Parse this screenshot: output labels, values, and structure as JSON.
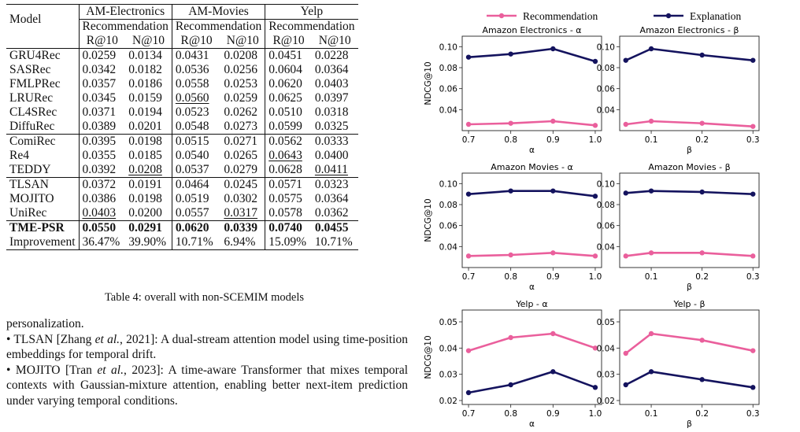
{
  "table": {
    "col_model": "Model",
    "datasets": [
      "AM-Electronics",
      "AM-Movies",
      "Yelp"
    ],
    "task": "Recommendation",
    "metrics": [
      "R@10",
      "N@10"
    ],
    "rows": [
      {
        "model": "GRU4Rec",
        "vals": [
          "0.0259",
          "0.0134",
          "0.0431",
          "0.0208",
          "0.0451",
          "0.0228"
        ],
        "underline": [],
        "group_start": false
      },
      {
        "model": "SASRec",
        "vals": [
          "0.0342",
          "0.0182",
          "0.0536",
          "0.0256",
          "0.0604",
          "0.0364"
        ],
        "underline": [],
        "group_start": false
      },
      {
        "model": "FMLPRec",
        "vals": [
          "0.0357",
          "0.0186",
          "0.0558",
          "0.0253",
          "0.0620",
          "0.0403"
        ],
        "underline": [],
        "group_start": false
      },
      {
        "model": "LRURec",
        "vals": [
          "0.0345",
          "0.0159",
          "0.0560",
          "0.0259",
          "0.0625",
          "0.0397"
        ],
        "underline": [
          2
        ],
        "group_start": false
      },
      {
        "model": "CL4SRec",
        "vals": [
          "0.0371",
          "0.0194",
          "0.0523",
          "0.0262",
          "0.0510",
          "0.0318"
        ],
        "underline": [],
        "group_start": false
      },
      {
        "model": "DiffuRec",
        "vals": [
          "0.0389",
          "0.0201",
          "0.0548",
          "0.0273",
          "0.0599",
          "0.0325"
        ],
        "underline": [],
        "group_start": false
      },
      {
        "model": "ComiRec",
        "vals": [
          "0.0395",
          "0.0198",
          "0.0515",
          "0.0271",
          "0.0562",
          "0.0333"
        ],
        "underline": [],
        "group_start": true
      },
      {
        "model": "Re4",
        "vals": [
          "0.0355",
          "0.0185",
          "0.0540",
          "0.0265",
          "0.0643",
          "0.0400"
        ],
        "underline": [
          4
        ],
        "group_start": false
      },
      {
        "model": "TEDDY",
        "vals": [
          "0.0392",
          "0.0208",
          "0.0537",
          "0.0279",
          "0.0628",
          "0.0411"
        ],
        "underline": [
          1,
          5
        ],
        "group_start": false
      },
      {
        "model": "TLSAN",
        "vals": [
          "0.0372",
          "0.0191",
          "0.0464",
          "0.0245",
          "0.0571",
          "0.0323"
        ],
        "underline": [],
        "group_start": true
      },
      {
        "model": "MOJITO",
        "vals": [
          "0.0386",
          "0.0198",
          "0.0519",
          "0.0302",
          "0.0575",
          "0.0364"
        ],
        "underline": [],
        "group_start": false
      },
      {
        "model": "UniRec",
        "vals": [
          "0.0403",
          "0.0200",
          "0.0557",
          "0.0317",
          "0.0578",
          "0.0362"
        ],
        "underline": [
          0,
          3
        ],
        "group_start": false
      },
      {
        "model": "TME-PSR",
        "vals": [
          "0.0550",
          "0.0291",
          "0.0620",
          "0.0339",
          "0.0740",
          "0.0455"
        ],
        "underline": [],
        "group_start": true,
        "bold": true
      },
      {
        "model": "Improvement",
        "vals": [
          "36.47%",
          "39.90%",
          "10.71%",
          "6.94%",
          "15.09%",
          "10.71%"
        ],
        "underline": [],
        "group_start": false
      }
    ],
    "caption": "Table 4: overall with non-SCEMIM models"
  },
  "body_text": [
    "personalization.",
    "• TLSAN [Zhang et al., 2021]: A dual-stream attention model using time-position embeddings for temporal drift.",
    "• MOJITO [Tran et al., 2023]: A time-aware Transformer that mixes temporal contexts with Gaussian-mixture attention, enabling better next-item prediction under varying temporal conditions."
  ],
  "chart_data": {
    "type": "line",
    "legend": [
      "Recommendation",
      "Explanation"
    ],
    "legend_position": "top",
    "colors": {
      "Recommendation": "#ea5f9c",
      "Explanation": "#14135e"
    },
    "ylabel": "NDCG@10",
    "panels": [
      {
        "title": "Amazon Electronics - α",
        "xlabel": "α",
        "x": [
          0.7,
          0.8,
          0.9,
          1.0
        ],
        "xticks": [
          "0.7",
          "0.8",
          "0.9",
          "1.0"
        ],
        "ylim": [
          0.02,
          0.11
        ],
        "yticks": [
          "0.04",
          "0.06",
          "0.08",
          "0.10"
        ],
        "series": [
          {
            "name": "Recommendation",
            "values": [
              0.026,
              0.027,
              0.029,
              0.025
            ]
          },
          {
            "name": "Explanation",
            "values": [
              0.09,
              0.093,
              0.098,
              0.086
            ]
          }
        ]
      },
      {
        "title": "Amazon Electronics - β",
        "xlabel": "β",
        "x": [
          0.05,
          0.1,
          0.2,
          0.3
        ],
        "xticks": [
          "0.1",
          "0.2",
          "0.3"
        ],
        "ylim": [
          0.02,
          0.11
        ],
        "yticks": [
          "0.04",
          "0.06",
          "0.08",
          "0.10"
        ],
        "series": [
          {
            "name": "Recommendation",
            "values": [
              0.026,
              0.029,
              0.027,
              0.024
            ]
          },
          {
            "name": "Explanation",
            "values": [
              0.087,
              0.098,
              0.092,
              0.087
            ]
          }
        ]
      },
      {
        "title": "Amazon Movies - α",
        "xlabel": "α",
        "x": [
          0.7,
          0.8,
          0.9,
          1.0
        ],
        "xticks": [
          "0.7",
          "0.8",
          "0.9",
          "1.0"
        ],
        "ylim": [
          0.02,
          0.11
        ],
        "yticks": [
          "0.04",
          "0.06",
          "0.08",
          "0.10"
        ],
        "series": [
          {
            "name": "Recommendation",
            "values": [
              0.031,
              0.032,
              0.034,
              0.031
            ]
          },
          {
            "name": "Explanation",
            "values": [
              0.09,
              0.093,
              0.093,
              0.088
            ]
          }
        ]
      },
      {
        "title": "Amazon Movies - β",
        "xlabel": "β",
        "x": [
          0.05,
          0.1,
          0.2,
          0.3
        ],
        "xticks": [
          "0.1",
          "0.2",
          "0.3"
        ],
        "ylim": [
          0.02,
          0.11
        ],
        "yticks": [
          "0.04",
          "0.06",
          "0.08",
          "0.10"
        ],
        "series": [
          {
            "name": "Recommendation",
            "values": [
              0.031,
              0.034,
              0.034,
              0.031
            ]
          },
          {
            "name": "Explanation",
            "values": [
              0.091,
              0.093,
              0.092,
              0.09
            ]
          }
        ]
      },
      {
        "title": "Yelp - α",
        "xlabel": "α",
        "x": [
          0.7,
          0.8,
          0.9,
          1.0
        ],
        "xticks": [
          "0.7",
          "0.8",
          "0.9",
          "1.0"
        ],
        "ylim": [
          0.0185,
          0.0545
        ],
        "yticks": [
          "0.02",
          "0.03",
          "0.04",
          "0.05"
        ],
        "series": [
          {
            "name": "Recommendation",
            "values": [
              0.039,
              0.044,
              0.0455,
              0.04
            ]
          },
          {
            "name": "Explanation",
            "values": [
              0.023,
              0.026,
              0.031,
              0.025
            ]
          }
        ]
      },
      {
        "title": "Yelp - β",
        "xlabel": "β",
        "x": [
          0.05,
          0.1,
          0.2,
          0.3
        ],
        "xticks": [
          "0.1",
          "0.2",
          "0.3"
        ],
        "ylim": [
          0.0185,
          0.0545
        ],
        "yticks": [
          "0.02",
          "0.03",
          "0.04",
          "0.05"
        ],
        "series": [
          {
            "name": "Recommendation",
            "values": [
              0.038,
              0.0455,
              0.043,
              0.039
            ]
          },
          {
            "name": "Explanation",
            "values": [
              0.026,
              0.031,
              0.028,
              0.025
            ]
          }
        ]
      }
    ]
  }
}
